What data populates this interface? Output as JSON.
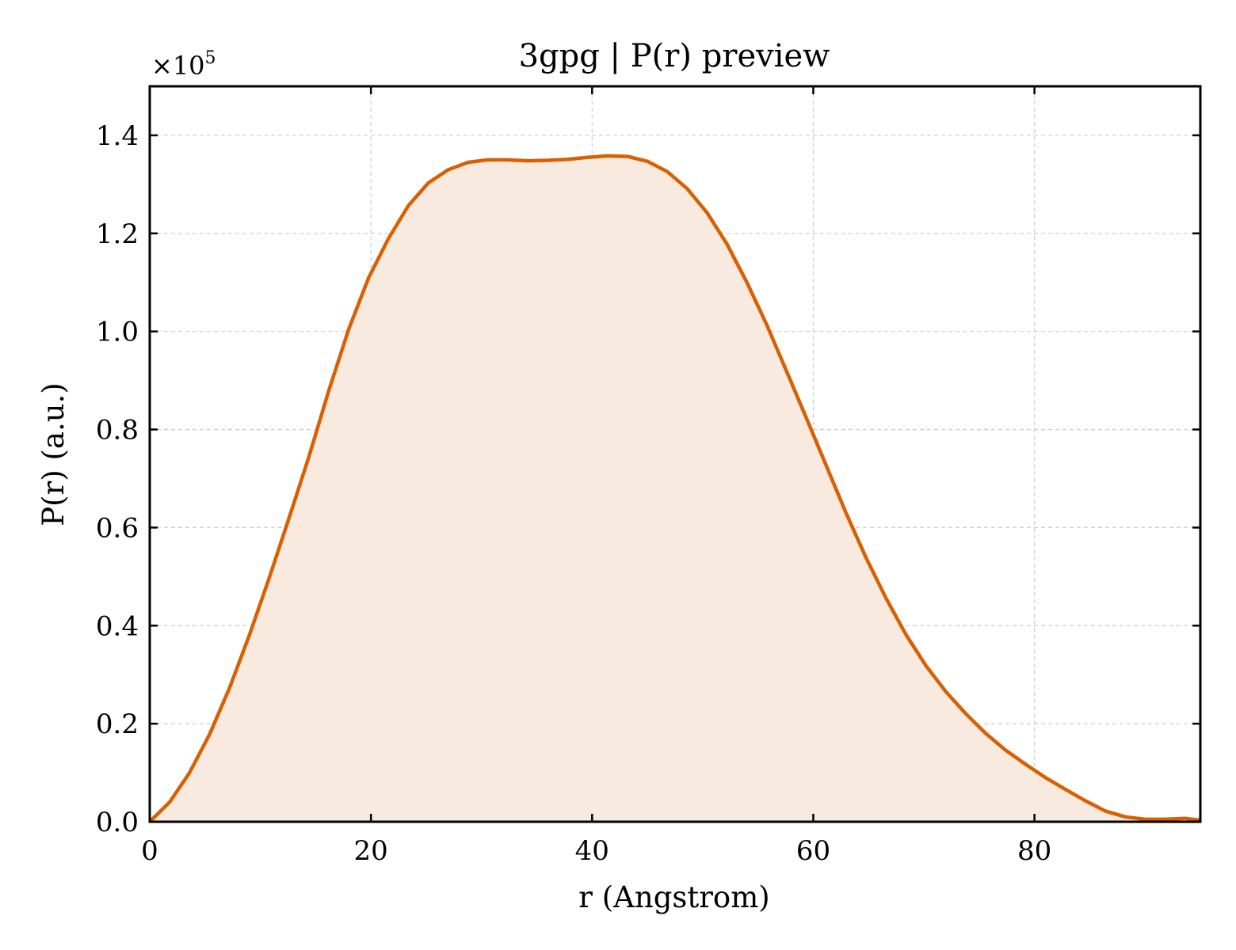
{
  "chart_data": {
    "type": "area",
    "title": "3gpg | P(r) preview",
    "xlabel": "r (Angstrom)",
    "ylabel": "P(r) (a.u.)",
    "y_multiplier": {
      "base": "×10",
      "exponent": "5"
    },
    "xlim": [
      0,
      95
    ],
    "ylim": [
      0,
      1.5
    ],
    "y_scale": 100000,
    "x_ticks": [
      0,
      20,
      40,
      60,
      80
    ],
    "x_tick_labels": [
      "0",
      "20",
      "40",
      "60",
      "80"
    ],
    "y_ticks": [
      0.0,
      0.2,
      0.4,
      0.6,
      0.8,
      1.0,
      1.2,
      1.4
    ],
    "y_tick_labels": [
      "0.0",
      "0.2",
      "0.4",
      "0.6",
      "0.8",
      "1.0",
      "1.2",
      "1.4"
    ],
    "grid": true,
    "series": [
      {
        "color": "#d95f02",
        "fill_color": "#f8eadf",
        "x": [
          0,
          1.8,
          3.6,
          5.4,
          7.2,
          9.0,
          10.8,
          12.6,
          14.4,
          16.2,
          18.0,
          19.8,
          21.6,
          23.4,
          25.2,
          27.0,
          28.8,
          30.6,
          32.4,
          34.2,
          36.0,
          37.8,
          39.6,
          41.4,
          43.2,
          45.0,
          46.8,
          48.6,
          50.4,
          52.2,
          54.0,
          55.8,
          57.6,
          59.4,
          61.2,
          63.0,
          64.8,
          66.6,
          68.4,
          70.2,
          72.0,
          73.8,
          75.6,
          77.4,
          79.2,
          81.0,
          82.8,
          84.6,
          86.4,
          88.2,
          90.0,
          91.8,
          93.6,
          95.0
        ],
        "y": [
          0.0,
          0.04,
          0.1,
          0.178,
          0.272,
          0.38,
          0.497,
          0.62,
          0.745,
          0.88,
          1.005,
          1.11,
          1.19,
          1.257,
          1.303,
          1.33,
          1.345,
          1.35,
          1.35,
          1.348,
          1.349,
          1.351,
          1.355,
          1.358,
          1.357,
          1.347,
          1.326,
          1.291,
          1.242,
          1.178,
          1.1,
          1.013,
          0.918,
          0.822,
          0.725,
          0.628,
          0.537,
          0.455,
          0.381,
          0.318,
          0.265,
          0.22,
          0.18,
          0.146,
          0.117,
          0.09,
          0.066,
          0.043,
          0.022,
          0.01,
          0.005,
          0.005,
          0.007,
          0.003
        ]
      }
    ]
  }
}
